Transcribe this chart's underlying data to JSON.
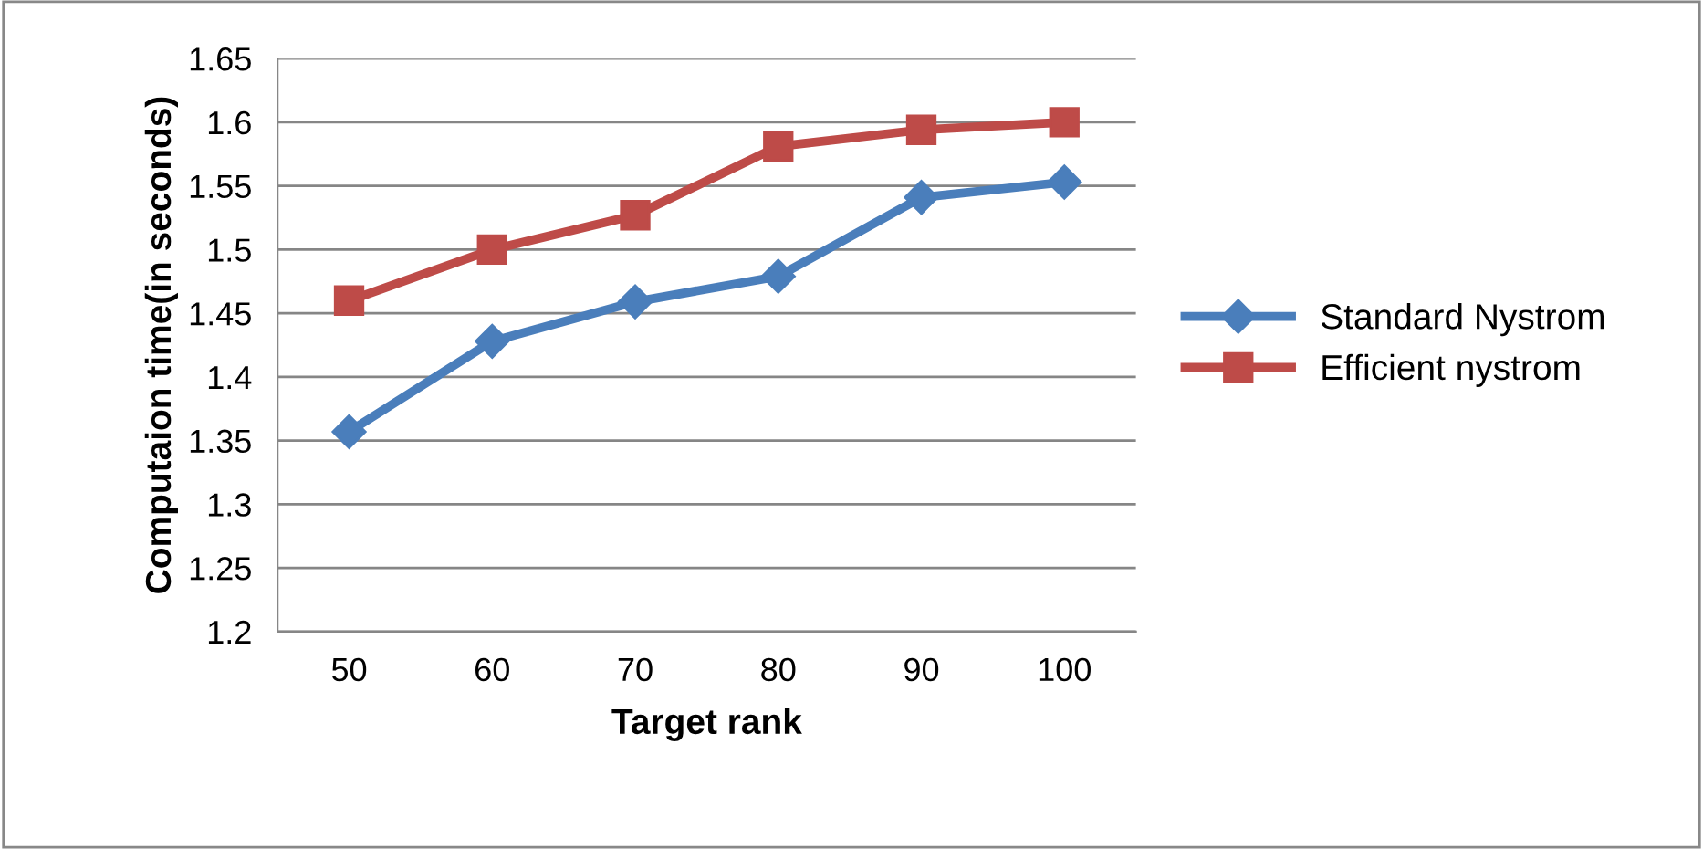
{
  "chart_data": {
    "type": "line",
    "xlabel": "Target rank",
    "ylabel": "Computaion time(in seconds)",
    "categories": [
      "50",
      "60",
      "70",
      "80",
      "90",
      "100"
    ],
    "series": [
      {
        "name": "Standard Nystrom",
        "color": "#4a7ebb",
        "marker": "diamond",
        "values": [
          1.357,
          1.428,
          1.459,
          1.479,
          1.541,
          1.553
        ]
      },
      {
        "name": "Efficient nystrom",
        "color": "#be4b48",
        "marker": "square",
        "values": [
          1.46,
          1.5,
          1.527,
          1.581,
          1.594,
          1.6
        ]
      }
    ],
    "ylim": [
      1.2,
      1.65
    ],
    "yticks": [
      1.2,
      1.25,
      1.3,
      1.35,
      1.4,
      1.45,
      1.5,
      1.55,
      1.6,
      1.65
    ],
    "grid": "y",
    "legend": "right",
    "line_style": "solid"
  }
}
